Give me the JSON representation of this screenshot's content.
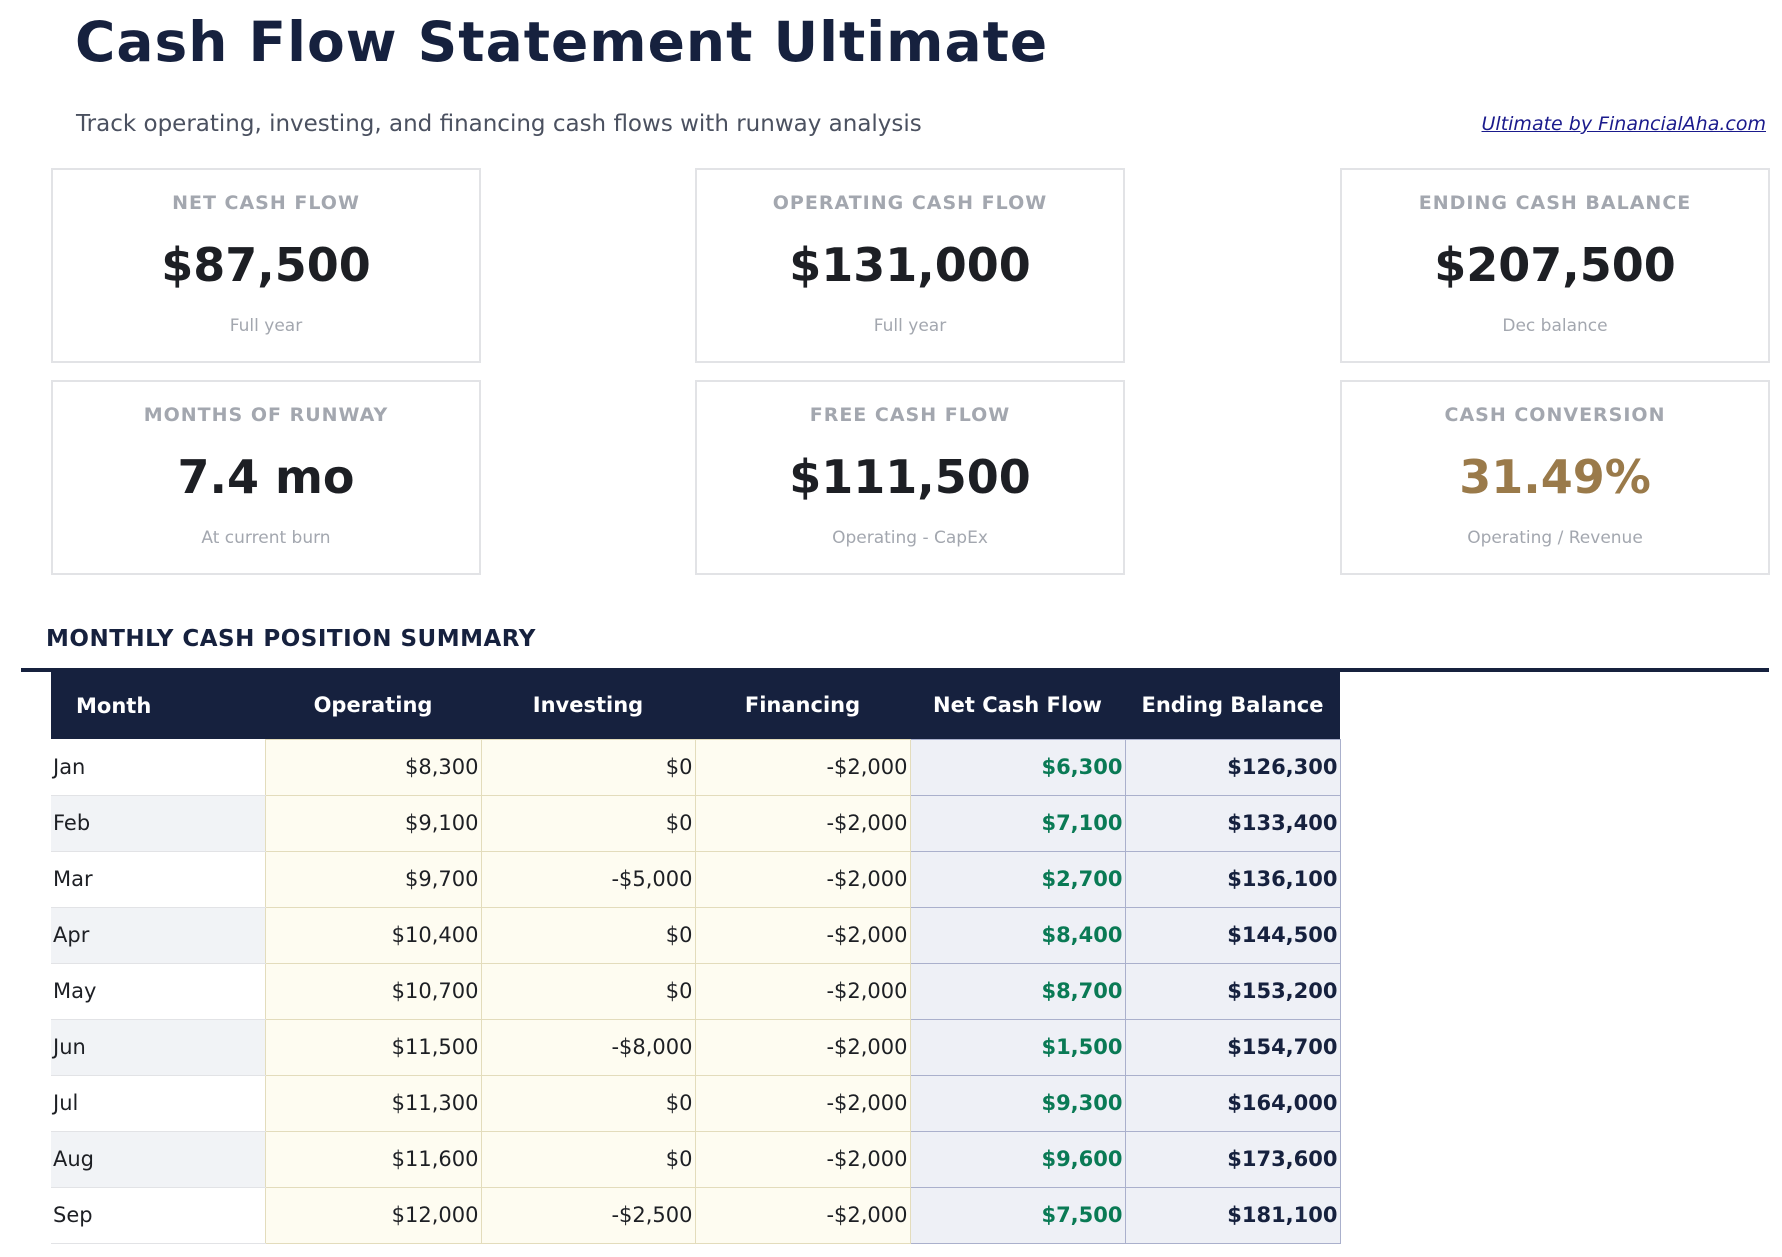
{
  "header": {
    "title": "Cash Flow Statement Ultimate",
    "subtitle": "Track operating, investing, and financing cash flows with runway analysis",
    "brand": "Ultimate by FinancialAha.com"
  },
  "cards": [
    {
      "label": "NET CASH FLOW",
      "value": "$87,500",
      "sub": "Full year"
    },
    {
      "label": "OPERATING CASH FLOW",
      "value": "$131,000",
      "sub": "Full year"
    },
    {
      "label": "ENDING CASH BALANCE",
      "value": "$207,500",
      "sub": "Dec balance"
    },
    {
      "label": "MONTHS OF RUNWAY",
      "value": "7.4 mo",
      "sub": "At current burn"
    },
    {
      "label": "FREE CASH FLOW",
      "value": "$111,500",
      "sub": "Operating - CapEx"
    },
    {
      "label": "CASH CONVERSION",
      "value": "31.49%",
      "sub": "Operating / Revenue"
    }
  ],
  "colors": {
    "navy": "#16213e",
    "accent_gold": "#9a7a4a",
    "positive_green": "#0a7a55"
  },
  "table": {
    "title": "MONTHLY CASH POSITION SUMMARY",
    "headers": [
      "Month",
      "Operating",
      "Investing",
      "Financing",
      "Net Cash Flow",
      "Ending Balance"
    ],
    "rows": [
      [
        "Jan",
        "$8,300",
        "$0",
        "-$2,000",
        "$6,300",
        "$126,300"
      ],
      [
        "Feb",
        "$9,100",
        "$0",
        "-$2,000",
        "$7,100",
        "$133,400"
      ],
      [
        "Mar",
        "$9,700",
        "-$5,000",
        "-$2,000",
        "$2,700",
        "$136,100"
      ],
      [
        "Apr",
        "$10,400",
        "$0",
        "-$2,000",
        "$8,400",
        "$144,500"
      ],
      [
        "May",
        "$10,700",
        "$0",
        "-$2,000",
        "$8,700",
        "$153,200"
      ],
      [
        "Jun",
        "$11,500",
        "-$8,000",
        "-$2,000",
        "$1,500",
        "$154,700"
      ],
      [
        "Jul",
        "$11,300",
        "$0",
        "-$2,000",
        "$9,300",
        "$164,000"
      ],
      [
        "Aug",
        "$11,600",
        "$0",
        "-$2,000",
        "$9,600",
        "$173,600"
      ],
      [
        "Sep",
        "$12,000",
        "-$2,500",
        "-$2,000",
        "$7,500",
        "$181,100"
      ]
    ]
  }
}
